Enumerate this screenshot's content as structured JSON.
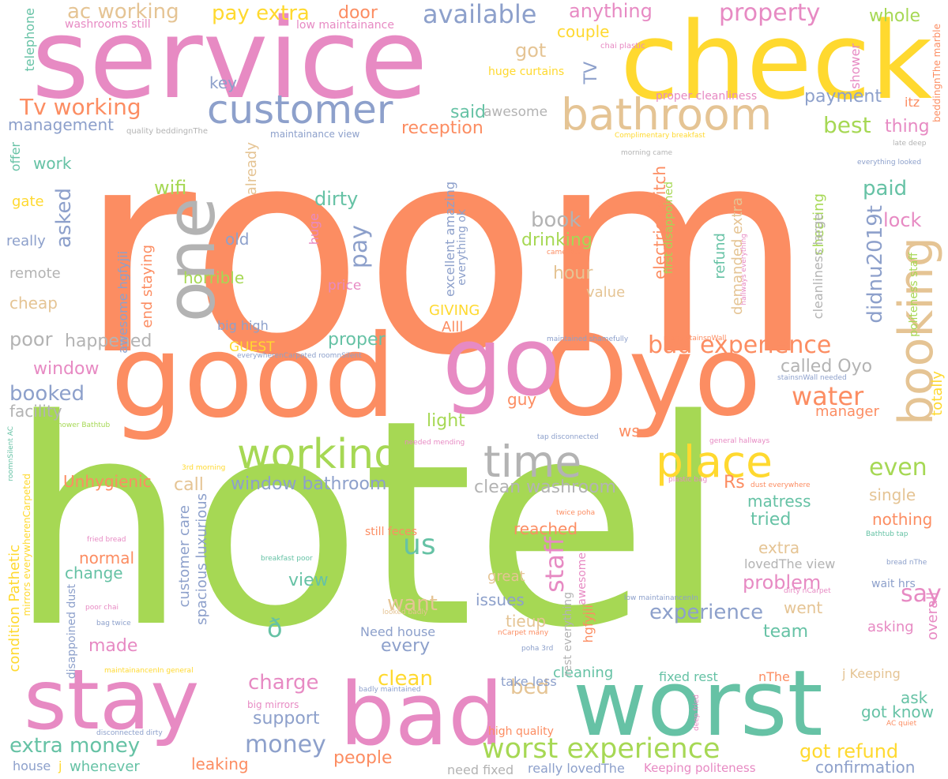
{
  "palette": {
    "orange": "#fc8d62",
    "green": "#a6d854",
    "pink": "#e78ac3",
    "blue": "#8da0cb",
    "teal": "#66c2a5",
    "yellow": "#ffd92f",
    "tan": "#e5c494",
    "gray": "#b3b3b3"
  },
  "words": [
    {
      "t": "room",
      "c": "orange",
      "s": 360
    },
    {
      "t": "hotel",
      "c": "green",
      "s": 360
    },
    {
      "t": "service",
      "c": "pink",
      "s": 140
    },
    {
      "t": "check",
      "c": "yellow",
      "s": 135
    },
    {
      "t": "good",
      "c": "orange",
      "s": 145
    },
    {
      "t": "Oyo",
      "c": "orange",
      "s": 140
    },
    {
      "t": "go",
      "c": "pink",
      "s": 120
    },
    {
      "t": "one",
      "c": "gray",
      "s": 85
    },
    {
      "t": "worst",
      "c": "teal",
      "s": 115
    },
    {
      "t": "bad",
      "c": "pink",
      "s": 110
    },
    {
      "t": "stay",
      "c": "pink",
      "s": 105
    },
    {
      "t": "booking",
      "c": "tan",
      "s": 60
    },
    {
      "t": "customer",
      "c": "blue",
      "s": 50
    },
    {
      "t": "bathroom",
      "c": "tan",
      "s": 55
    },
    {
      "t": "working",
      "c": "green",
      "s": 52
    },
    {
      "t": "time",
      "c": "gray",
      "s": 55
    },
    {
      "t": "place",
      "c": "yellow",
      "s": 55
    },
    {
      "t": "worst experience",
      "c": "green",
      "s": 35
    },
    {
      "t": "available",
      "c": "blue",
      "s": 32
    },
    {
      "t": "property",
      "c": "pink",
      "s": 30
    },
    {
      "t": "ac working",
      "c": "tan",
      "s": 26
    },
    {
      "t": "pay extra",
      "c": "yellow",
      "s": 26
    },
    {
      "t": "door",
      "c": "orange",
      "s": 22
    },
    {
      "t": "anything",
      "c": "pink",
      "s": 24
    },
    {
      "t": "whole",
      "c": "green",
      "s": 22
    },
    {
      "t": "got",
      "c": "tan",
      "s": 24
    },
    {
      "t": "couple",
      "c": "yellow",
      "s": 20
    },
    {
      "t": "Tv working",
      "c": "orange",
      "s": 28
    },
    {
      "t": "management",
      "c": "blue",
      "s": 20
    },
    {
      "t": "said",
      "c": "teal",
      "s": 22
    },
    {
      "t": "reception",
      "c": "orange",
      "s": 22
    },
    {
      "t": "awesome",
      "c": "gray",
      "s": 17
    },
    {
      "t": "best",
      "c": "green",
      "s": 28
    },
    {
      "t": "thing",
      "c": "pink",
      "s": 22
    },
    {
      "t": "payment",
      "c": "blue",
      "s": 22
    },
    {
      "t": "key",
      "c": "blue",
      "s": 20
    },
    {
      "t": "work",
      "c": "teal",
      "s": 20
    },
    {
      "t": "wifi",
      "c": "green",
      "s": 24
    },
    {
      "t": "asked",
      "c": "blue",
      "s": 26
    },
    {
      "t": "gate",
      "c": "yellow",
      "s": 18
    },
    {
      "t": "really",
      "c": "blue",
      "s": 18
    },
    {
      "t": "remote",
      "c": "gray",
      "s": 18
    },
    {
      "t": "cheap",
      "c": "tan",
      "s": 20
    },
    {
      "t": "old",
      "c": "blue",
      "s": 20
    },
    {
      "t": "horrible",
      "c": "green",
      "s": 20
    },
    {
      "t": "dirty",
      "c": "teal",
      "s": 24
    },
    {
      "t": "pay",
      "c": "blue",
      "s": 30
    },
    {
      "t": "book",
      "c": "gray",
      "s": 26
    },
    {
      "t": "drinking",
      "c": "green",
      "s": 22
    },
    {
      "t": "hour",
      "c": "tan",
      "s": 22
    },
    {
      "t": "value",
      "c": "tan",
      "s": 18
    },
    {
      "t": "paid",
      "c": "teal",
      "s": 26
    },
    {
      "t": "lock",
      "c": "pink",
      "s": 24
    },
    {
      "t": "price",
      "c": "pink",
      "s": 17
    },
    {
      "t": "poor",
      "c": "gray",
      "s": 24
    },
    {
      "t": "happened",
      "c": "gray",
      "s": 22
    },
    {
      "t": "GUEST",
      "c": "yellow",
      "s": 17
    },
    {
      "t": "proper",
      "c": "teal",
      "s": 22
    },
    {
      "t": "GIVING",
      "c": "yellow",
      "s": 18
    },
    {
      "t": "Alll",
      "c": "orange",
      "s": 18
    },
    {
      "t": "big high",
      "c": "blue",
      "s": 16
    },
    {
      "t": "bad experience",
      "c": "orange",
      "s": 30
    },
    {
      "t": "called Oyo",
      "c": "gray",
      "s": 22
    },
    {
      "t": "window",
      "c": "pink",
      "s": 22
    },
    {
      "t": "booked",
      "c": "blue",
      "s": 26
    },
    {
      "t": "facility",
      "c": "gray",
      "s": 20
    },
    {
      "t": "water",
      "c": "orange",
      "s": 32
    },
    {
      "t": "manager",
      "c": "orange",
      "s": 18
    },
    {
      "t": "light",
      "c": "green",
      "s": 22
    },
    {
      "t": "guy",
      "c": "orange",
      "s": 20
    },
    {
      "t": "ws",
      "c": "orange",
      "s": 20
    },
    {
      "t": "us",
      "c": "teal",
      "s": 36
    },
    {
      "t": "even",
      "c": "green",
      "s": 30
    },
    {
      "t": "Rs",
      "c": "orange",
      "s": 22
    },
    {
      "t": "window bathroom",
      "c": "blue",
      "s": 22
    },
    {
      "t": "clean washroom",
      "c": "gray",
      "s": 22
    },
    {
      "t": "call",
      "c": "tan",
      "s": 22
    },
    {
      "t": "Unhygienic",
      "c": "orange",
      "s": 20
    },
    {
      "t": "matress",
      "c": "teal",
      "s": 20
    },
    {
      "t": "tried",
      "c": "teal",
      "s": 22
    },
    {
      "t": "single",
      "c": "tan",
      "s": 20
    },
    {
      "t": "nothing",
      "c": "orange",
      "s": 20
    },
    {
      "t": "normal",
      "c": "orange",
      "s": 20
    },
    {
      "t": "change",
      "c": "teal",
      "s": 20
    },
    {
      "t": "view",
      "c": "teal",
      "s": 22
    },
    {
      "t": "staff",
      "c": "pink",
      "s": 32
    },
    {
      "t": "reached",
      "c": "orange",
      "s": 20
    },
    {
      "t": "extra",
      "c": "tan",
      "s": 20
    },
    {
      "t": "lovedThe view",
      "c": "gray",
      "s": 16
    },
    {
      "t": "problem",
      "c": "pink",
      "s": 24
    },
    {
      "t": "say",
      "c": "pink",
      "s": 30
    },
    {
      "t": "want",
      "c": "tan",
      "s": 26
    },
    {
      "t": "great",
      "c": "tan",
      "s": 18
    },
    {
      "t": "issues",
      "c": "blue",
      "s": 20
    },
    {
      "t": "experience",
      "c": "blue",
      "s": 26
    },
    {
      "t": "went",
      "c": "tan",
      "s": 20
    },
    {
      "t": "wait hrs",
      "c": "blue",
      "s": 14
    },
    {
      "t": "made",
      "c": "pink",
      "s": 22
    },
    {
      "t": "ð",
      "c": "teal",
      "s": 32
    },
    {
      "t": "tieup",
      "c": "tan",
      "s": 20
    },
    {
      "t": "team",
      "c": "teal",
      "s": 22
    },
    {
      "t": "asking",
      "c": "pink",
      "s": 18
    },
    {
      "t": "every",
      "c": "blue",
      "s": 22
    },
    {
      "t": "Need house",
      "c": "blue",
      "s": 16
    },
    {
      "t": "charge",
      "c": "pink",
      "s": 26
    },
    {
      "t": "clean",
      "c": "yellow",
      "s": 26
    },
    {
      "t": "bed",
      "c": "tan",
      "s": 26
    },
    {
      "t": "cleaning",
      "c": "teal",
      "s": 18
    },
    {
      "t": "fixed rest",
      "c": "teal",
      "s": 16
    },
    {
      "t": "nThe",
      "c": "orange",
      "s": 16
    },
    {
      "t": "j Keeping",
      "c": "tan",
      "s": 16
    },
    {
      "t": "ask",
      "c": "teal",
      "s": 20
    },
    {
      "t": "got know",
      "c": "teal",
      "s": 20
    },
    {
      "t": "support",
      "c": "blue",
      "s": 22
    },
    {
      "t": "take less",
      "c": "blue",
      "s": 16
    },
    {
      "t": "money",
      "c": "blue",
      "s": 30
    },
    {
      "t": "extra money",
      "c": "teal",
      "s": 26
    },
    {
      "t": "people",
      "c": "orange",
      "s": 22
    },
    {
      "t": "got refund",
      "c": "yellow",
      "s": 24
    },
    {
      "t": "confirmation",
      "c": "blue",
      "s": 20
    },
    {
      "t": "leaking",
      "c": "orange",
      "s": 20
    },
    {
      "t": "whenever",
      "c": "teal",
      "s": 18
    },
    {
      "t": "house",
      "c": "blue",
      "s": 16
    },
    {
      "t": "j",
      "c": "yellow",
      "s": 16
    },
    {
      "t": "need fixed",
      "c": "gray",
      "s": 16
    },
    {
      "t": "really lovedThe",
      "c": "blue",
      "s": 16
    },
    {
      "t": "Keeping politeness",
      "c": "pink",
      "s": 15
    },
    {
      "t": "high quality",
      "c": "orange",
      "s": 14
    },
    {
      "t": "didnu2019t",
      "c": "blue",
      "s": 26
    },
    {
      "t": "telephone",
      "c": "teal",
      "s": 16
    },
    {
      "t": "offer",
      "c": "teal",
      "s": 16
    },
    {
      "t": "TV",
      "c": "blue",
      "s": 22
    },
    {
      "t": "already",
      "c": "tan",
      "s": 18
    },
    {
      "t": "end staying",
      "c": "orange",
      "s": 18
    },
    {
      "t": "awesome hgfyjii",
      "c": "blue",
      "s": 16
    },
    {
      "t": "huge",
      "c": "pink",
      "s": 16
    },
    {
      "t": "excellent amazing",
      "c": "blue",
      "s": 16
    },
    {
      "t": "everything ok",
      "c": "blue",
      "s": 14
    },
    {
      "t": "electric switch",
      "c": "orange",
      "s": 20
    },
    {
      "t": "first disappoined",
      "c": "green",
      "s": 14
    },
    {
      "t": "refund",
      "c": "teal",
      "s": 18
    },
    {
      "t": "demanded extra",
      "c": "tan",
      "s": 18
    },
    {
      "t": "cheating",
      "c": "green",
      "s": 18
    },
    {
      "t": "cleanliness large",
      "c": "gray",
      "s": 16
    },
    {
      "t": "politeness staff",
      "c": "green",
      "s": 14
    },
    {
      "t": "shower",
      "c": "pink",
      "s": 16
    },
    {
      "t": "itz",
      "c": "orange",
      "s": 16
    },
    {
      "t": "beddingnThe marble",
      "c": "orange",
      "s": 12
    },
    {
      "t": "overall",
      "c": "pink",
      "s": 18
    },
    {
      "t": "totally",
      "c": "yellow",
      "s": 18
    },
    {
      "t": "condition Pathetic",
      "c": "yellow",
      "s": 18
    },
    {
      "t": "mirrors everywherenCarpeted",
      "c": "yellow",
      "s": 12
    },
    {
      "t": "disappoined dust",
      "c": "blue",
      "s": 14
    },
    {
      "t": "customer care",
      "c": "blue",
      "s": 18
    },
    {
      "t": "spacious luxurious",
      "c": "blue",
      "s": 18
    },
    {
      "t": "awesome",
      "c": "pink",
      "s": 14
    },
    {
      "t": "rest everything",
      "c": "gray",
      "s": 14
    },
    {
      "t": "hgfyjii",
      "c": "orange",
      "s": 16
    },
    {
      "t": "washrooms still",
      "c": "pink",
      "s": 14
    },
    {
      "t": "low maintainance",
      "c": "pink",
      "s": 14
    },
    {
      "t": "chai plastic",
      "c": "pink",
      "s": 10
    },
    {
      "t": "huge curtains",
      "c": "yellow",
      "s": 14
    },
    {
      "t": "proper cleanliness",
      "c": "pink",
      "s": 14
    },
    {
      "t": "quality beddingnThe",
      "c": "gray",
      "s": 10
    },
    {
      "t": "maintainance view",
      "c": "blue",
      "s": 12
    },
    {
      "t": "Complimentary breakfast",
      "c": "yellow",
      "s": 9
    },
    {
      "t": "morning came",
      "c": "gray",
      "s": 9
    },
    {
      "t": "late deep",
      "c": "gray",
      "s": 9
    },
    {
      "t": "everything looked",
      "c": "blue",
      "s": 9
    },
    {
      "t": "hallways everything",
      "c": "pink",
      "s": 9
    },
    {
      "t": "came late",
      "c": "orange",
      "s": 9
    },
    {
      "t": "maintained shamefully",
      "c": "blue",
      "s": 9
    },
    {
      "t": "many stainsnWall",
      "c": "orange",
      "s": 9
    },
    {
      "t": "stainsnWall needed",
      "c": "blue",
      "s": 9
    },
    {
      "t": "everywherenCarpeted roomnSilent",
      "c": "blue",
      "s": 9
    },
    {
      "t": "shower Bathtub",
      "c": "green",
      "s": 9
    },
    {
      "t": "needed mending",
      "c": "pink",
      "s": 9
    },
    {
      "t": "tap disconnected",
      "c": "blue",
      "s": 9
    },
    {
      "t": "general hallways",
      "c": "pink",
      "s": 9
    },
    {
      "t": "3rd morning",
      "c": "yellow",
      "s": 9
    },
    {
      "t": "plastic bag",
      "c": "pink",
      "s": 9
    },
    {
      "t": "dust everywhere",
      "c": "orange",
      "s": 9
    },
    {
      "t": "roomnSilent AC",
      "c": "teal",
      "s": 9
    },
    {
      "t": "twice poha",
      "c": "orange",
      "s": 9
    },
    {
      "t": "still feces",
      "c": "orange",
      "s": 14
    },
    {
      "t": "fried bread",
      "c": "pink",
      "s": 9
    },
    {
      "t": "Bathtub tap",
      "c": "teal",
      "s": 9
    },
    {
      "t": "breakfast poor",
      "c": "teal",
      "s": 9
    },
    {
      "t": "bread nThe",
      "c": "blue",
      "s": 9
    },
    {
      "t": "low maintainancenIn",
      "c": "blue",
      "s": 9
    },
    {
      "t": "dirty nCarpet",
      "c": "pink",
      "s": 9
    },
    {
      "t": "looked badly",
      "c": "tan",
      "s": 9
    },
    {
      "t": "poor chai",
      "c": "pink",
      "s": 9
    },
    {
      "t": "bag twice",
      "c": "blue",
      "s": 9
    },
    {
      "t": "nCarpet many",
      "c": "orange",
      "s": 9
    },
    {
      "t": "poha 3rd",
      "c": "blue",
      "s": 9
    },
    {
      "t": "maintainancenIn general",
      "c": "yellow",
      "s": 9
    },
    {
      "t": "badly maintained",
      "c": "blue",
      "s": 9
    },
    {
      "t": "big mirrors",
      "c": "pink",
      "s": 12
    },
    {
      "t": "disconnected dirty",
      "c": "blue",
      "s": 9
    },
    {
      "t": "deep fried",
      "c": "pink",
      "s": 9
    },
    {
      "t": "AC quiet",
      "c": "orange",
      "s": 9
    }
  ]
}
